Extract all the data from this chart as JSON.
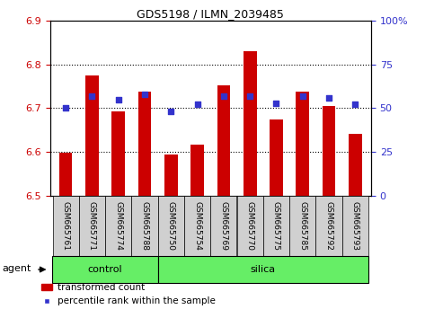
{
  "title": "GDS5198 / ILMN_2039485",
  "samples": [
    "GSM665761",
    "GSM665771",
    "GSM665774",
    "GSM665788",
    "GSM665750",
    "GSM665754",
    "GSM665769",
    "GSM665770",
    "GSM665775",
    "GSM665785",
    "GSM665792",
    "GSM665793"
  ],
  "bar_values": [
    6.598,
    6.775,
    6.692,
    6.738,
    6.594,
    6.617,
    6.752,
    6.83,
    6.674,
    6.738,
    6.705,
    6.642
  ],
  "percentile_values": [
    50,
    57,
    55,
    58,
    48,
    52,
    57,
    57,
    53,
    57,
    56,
    52
  ],
  "bar_bottom": 6.5,
  "ylim_left": [
    6.5,
    6.9
  ],
  "ylim_right": [
    0,
    100
  ],
  "yticks_left": [
    6.5,
    6.6,
    6.7,
    6.8,
    6.9
  ],
  "yticks_right": [
    0,
    25,
    50,
    75,
    100
  ],
  "ytick_labels_right": [
    "0",
    "25",
    "50",
    "75",
    "100%"
  ],
  "bar_color": "#cc0000",
  "marker_color": "#3333cc",
  "grid_color": "#000000",
  "control_label": "control",
  "silica_label": "silica",
  "agent_label": "agent",
  "legend_bar_label": "transformed count",
  "legend_marker_label": "percentile rank within the sample",
  "tick_bg_color": "#d0d0d0",
  "group_bar_color": "#66ee66",
  "left_ylabel_color": "#cc0000",
  "right_ylabel_color": "#3333cc",
  "figsize": [
    4.83,
    3.54
  ],
  "dpi": 100,
  "n_control": 4,
  "n_silica": 8
}
